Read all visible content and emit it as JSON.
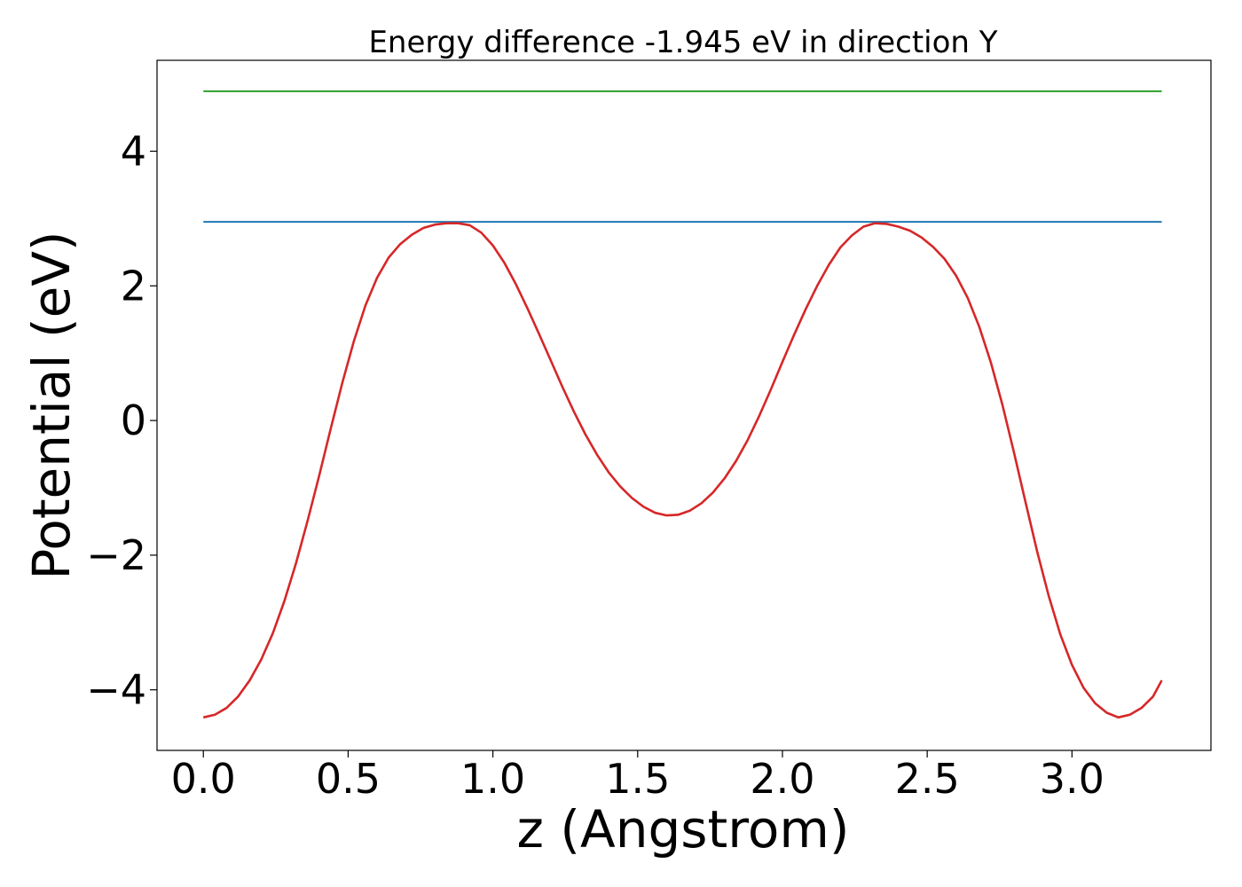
{
  "chart_data": {
    "type": "line",
    "title": "Energy difference -1.945 eV in direction Y",
    "xlabel": "z (Angstrom)",
    "ylabel": "Potential (eV)",
    "xlim": [
      -0.16,
      3.48
    ],
    "ylim": [
      -4.9,
      5.35
    ],
    "x_ticks": [
      0.0,
      0.5,
      1.0,
      1.5,
      2.0,
      2.5,
      3.0
    ],
    "x_tick_labels": [
      "0.0",
      "0.5",
      "1.0",
      "1.5",
      "2.0",
      "2.5",
      "3.0"
    ],
    "y_ticks": [
      -4,
      -2,
      0,
      2,
      4
    ],
    "y_tick_labels": [
      "−4",
      "−2",
      "0",
      "2",
      "4"
    ],
    "grid": false,
    "series": [
      {
        "color": "#d62728",
        "x": [
          0.0,
          0.04,
          0.08,
          0.12,
          0.16,
          0.2,
          0.24,
          0.28,
          0.32,
          0.36,
          0.4,
          0.44,
          0.48,
          0.52,
          0.56,
          0.6,
          0.64,
          0.68,
          0.72,
          0.76,
          0.8,
          0.84,
          0.88,
          0.92,
          0.96,
          1.0,
          1.04,
          1.08,
          1.12,
          1.16,
          1.2,
          1.24,
          1.28,
          1.32,
          1.36,
          1.4,
          1.44,
          1.48,
          1.52,
          1.56,
          1.6,
          1.64,
          1.68,
          1.72,
          1.76,
          1.8,
          1.84,
          1.88,
          1.92,
          1.96,
          2.0,
          2.04,
          2.08,
          2.12,
          2.16,
          2.2,
          2.24,
          2.28,
          2.32,
          2.36,
          2.4,
          2.44,
          2.48,
          2.52,
          2.56,
          2.6,
          2.64,
          2.68,
          2.72,
          2.76,
          2.8,
          2.84,
          2.88,
          2.92,
          2.96,
          3.0,
          3.04,
          3.08,
          3.12,
          3.16,
          3.2,
          3.24,
          3.28,
          3.31
        ],
        "y": [
          -4.41,
          -4.37,
          -4.27,
          -4.1,
          -3.86,
          -3.55,
          -3.16,
          -2.68,
          -2.12,
          -1.49,
          -0.82,
          -0.12,
          0.56,
          1.18,
          1.71,
          2.12,
          2.42,
          2.62,
          2.76,
          2.86,
          2.91,
          2.93,
          2.93,
          2.9,
          2.79,
          2.6,
          2.34,
          2.02,
          1.66,
          1.28,
          0.89,
          0.5,
          0.13,
          -0.21,
          -0.51,
          -0.77,
          -0.98,
          -1.15,
          -1.28,
          -1.37,
          -1.41,
          -1.4,
          -1.34,
          -1.23,
          -1.07,
          -0.86,
          -0.6,
          -0.29,
          0.07,
          0.46,
          0.87,
          1.27,
          1.65,
          2.0,
          2.31,
          2.57,
          2.75,
          2.88,
          2.93,
          2.92,
          2.88,
          2.82,
          2.72,
          2.58,
          2.4,
          2.15,
          1.82,
          1.39,
          0.86,
          0.23,
          -0.48,
          -1.22,
          -1.95,
          -2.61,
          -3.18,
          -3.63,
          -3.97,
          -4.2,
          -4.34,
          -4.41,
          -4.37,
          -4.27,
          -4.1,
          -3.86
        ]
      },
      {
        "color": "#1f77b4",
        "x": [
          0.0,
          3.31
        ],
        "y": [
          2.95,
          2.95
        ]
      },
      {
        "color": "#2ca02c",
        "x": [
          0.0,
          3.31
        ],
        "y": [
          4.89,
          4.89
        ]
      }
    ]
  }
}
